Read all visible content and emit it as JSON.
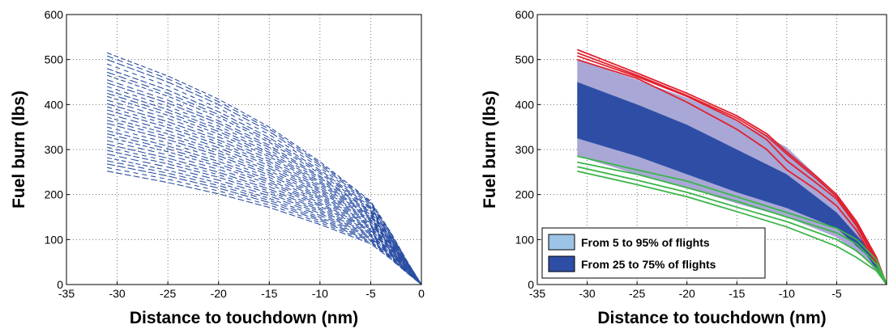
{
  "chart_data": [
    {
      "type": "line",
      "xlabel": "Distance to touchdown (nm)",
      "ylabel": "Fuel burn (lbs)",
      "xlim": [
        -35,
        0
      ],
      "ylim": [
        0,
        600
      ],
      "xticks": [
        "-35",
        "-30",
        "-25",
        "-20",
        "-15",
        "-10",
        "-5",
        "0"
      ],
      "yticks": [
        "0",
        "100",
        "200",
        "300",
        "400",
        "500",
        "600"
      ],
      "grid": true,
      "line_style": "dashed",
      "color": "#2b4fa3",
      "series_note": "",
      "start_x": -31,
      "start_values": [
        515,
        508,
        500,
        490,
        480,
        472,
        465,
        455,
        448,
        440,
        432,
        425,
        418,
        410,
        402,
        395,
        388,
        380,
        372,
        365,
        358,
        350,
        342,
        335,
        328,
        320,
        312,
        305,
        298,
        290,
        282,
        275,
        268,
        260,
        252
      ],
      "knee_x": -5
    },
    {
      "type": "area",
      "xlabel": "Distance to touchdown (nm)",
      "ylabel": "Fuel burn (lbs)",
      "xlim": [
        -35,
        0
      ],
      "ylim": [
        0,
        600
      ],
      "xticks": [
        "-35",
        "-30",
        "-25",
        "-20",
        "-15",
        "-10",
        "-5",
        ""
      ],
      "yticks": [
        "0",
        "100",
        "200",
        "300",
        "400",
        "500",
        "600"
      ],
      "grid": true,
      "legend_position": "bottom-left",
      "x": [
        -31,
        -25,
        -20,
        -15,
        -10,
        -5,
        -2,
        0
      ],
      "series": [
        {
          "name": "From 5 to 95% of flights",
          "color": "#a9a7d6",
          "lower": [
            285,
            245,
            215,
            180,
            150,
            105,
            55,
            0
          ],
          "upper": [
            500,
            455,
            415,
            365,
            305,
            200,
            100,
            0
          ]
        },
        {
          "name": "From 25 to 75% of flights",
          "color": "#2e4ea6",
          "lower": [
            325,
            285,
            245,
            205,
            170,
            125,
            65,
            0
          ],
          "upper": [
            450,
            400,
            355,
            300,
            245,
            160,
            85,
            0
          ]
        }
      ],
      "extra_lines": [
        {
          "color": "#e0202e",
          "x": [
            -31,
            -25,
            -20,
            -15,
            -12,
            -10,
            -7,
            -5,
            -3,
            -1,
            0
          ],
          "values": [
            [
              522,
              470,
              425,
              375,
              335,
              295,
              240,
              200,
              140,
              60,
              0
            ],
            [
              515,
              465,
              420,
              370,
              330,
              290,
              235,
              195,
              135,
              55,
              0
            ],
            [
              508,
              462,
              418,
              365,
              322,
              275,
              225,
              190,
              130,
              50,
              0
            ],
            [
              500,
              458,
              405,
              345,
              300,
              255,
              210,
              175,
              120,
              45,
              0
            ]
          ]
        },
        {
          "color": "#3cb54a",
          "x": [
            -31,
            -25,
            -20,
            -15,
            -10,
            -5,
            -3,
            -1,
            0
          ],
          "values": [
            [
              285,
              255,
              230,
              195,
              160,
              125,
              100,
              55,
              0
            ],
            [
              272,
              245,
              215,
              185,
              150,
              115,
              90,
              45,
              0
            ],
            [
              262,
              232,
              205,
              172,
              140,
              100,
              75,
              35,
              0
            ],
            [
              252,
              222,
              195,
              162,
              128,
              85,
              60,
              30,
              0
            ]
          ]
        }
      ]
    }
  ]
}
